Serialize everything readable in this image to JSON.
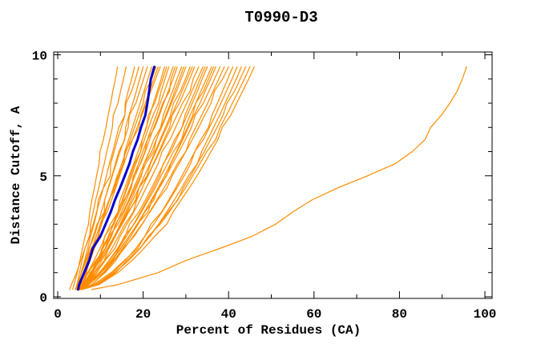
{
  "chart_data": {
    "type": "line",
    "title": "T0990-D3",
    "xlabel": "Percent of Residues (CA)",
    "ylabel": "Distance Cutoff, A",
    "xlim": [
      0,
      100
    ],
    "ylim": [
      0,
      10
    ],
    "grid": false,
    "legend": "none",
    "frame": "full-box-inward-ticks",
    "x_major_ticks": [
      0,
      20,
      40,
      60,
      80,
      100
    ],
    "x_minor_ticks": [
      10,
      30,
      50,
      70,
      90
    ],
    "x_tick_labels": [
      "0",
      "20",
      "40",
      "60",
      "80",
      "100"
    ],
    "y_major_ticks": [
      0,
      5,
      10
    ],
    "y_minor_ticks": [
      1,
      2,
      3,
      4,
      6,
      7,
      8,
      9
    ],
    "y_tick_labels": [
      "0",
      "5",
      "10"
    ],
    "colors": {
      "model": "#FF8C00",
      "highlight": "#0000CC",
      "axis": "#000000",
      "background": "#FFFFFF"
    },
    "cutoffs": [
      0.3,
      0.5,
      1.0,
      1.5,
      2.0,
      2.5,
      3.0,
      3.5,
      4.0,
      4.5,
      5.0,
      5.5,
      6.0,
      6.5,
      7.0,
      7.5,
      8.0,
      8.5,
      9.0,
      9.5
    ],
    "series": [
      {
        "name": "model-01",
        "color": "model",
        "x": [
          3.5,
          3.8,
          4.6,
          5.2,
          5.8,
          6.4,
          7.2,
          7.5,
          8.0,
          8.6,
          9.1,
          9.7,
          9.9,
          10.7,
          11.3,
          11.8,
          12.4,
          12.9,
          13.5,
          14.0
        ]
      },
      {
        "name": "model-02",
        "color": "model",
        "x": [
          4.2,
          4.5,
          5.1,
          5.7,
          6.4,
          7.5,
          7.7,
          8.3,
          8.9,
          9.6,
          10.2,
          10.9,
          11.5,
          12.2,
          12.8,
          13.0,
          14.1,
          14.7,
          15.4,
          16.0
        ]
      },
      {
        "name": "model-03",
        "color": "model",
        "x": [
          4.5,
          4.8,
          5.5,
          6.3,
          7.0,
          7.7,
          8.5,
          9.2,
          9.5,
          10.7,
          11.4,
          12.1,
          12.9,
          13.6,
          14.3,
          15.7,
          15.8,
          16.5,
          17.3,
          18.0
        ]
      },
      {
        "name": "model-04",
        "color": "model",
        "x": [
          2.8,
          3.2,
          4.4,
          5.4,
          6.4,
          7.4,
          8.3,
          9.1,
          9.9,
          10.7,
          12.3,
          12.4,
          13.2,
          14.0,
          14.9,
          15.7,
          16.0,
          17.3,
          18.2,
          19.0
        ]
      },
      {
        "name": "model-05",
        "color": "model",
        "x": [
          5.0,
          5.3,
          6.1,
          7.0,
          7.3,
          8.6,
          9.4,
          10.2,
          11.0,
          11.8,
          12.7,
          13.5,
          14.3,
          15.7,
          15.9,
          16.7,
          17.6,
          18.4,
          19.2,
          20.0
        ]
      },
      {
        "name": "model-06",
        "color": "model",
        "x": [
          4.3,
          4.7,
          5.6,
          6.5,
          7.4,
          8.3,
          9.2,
          10.9,
          11.0,
          11.9,
          12.8,
          13.7,
          14.6,
          15.6,
          16.5,
          16.8,
          18.3,
          19.2,
          20.1,
          21.0
        ]
      },
      {
        "name": "model-07",
        "color": "model",
        "x": [
          5.5,
          5.9,
          6.8,
          7.3,
          8.5,
          9.4,
          10.3,
          11.2,
          12.1,
          13.0,
          13.9,
          15.5,
          15.7,
          16.6,
          17.5,
          18.4,
          19.3,
          20.2,
          21.1,
          22.0
        ]
      },
      {
        "name": "model-08",
        "color": "model",
        "x": [
          4.6,
          5.0,
          6.0,
          7.0,
          8.0,
          9.0,
          10.0,
          11.0,
          12.0,
          13.5,
          14.0,
          15.0,
          16.0,
          17.0,
          18.0,
          19.0,
          20.0,
          20.5,
          22.0,
          23.0
        ]
      },
      {
        "name": "model-09",
        "color": "model",
        "x": [
          5.2,
          5.6,
          6.6,
          7.6,
          8.6,
          9.6,
          10.0,
          11.6,
          12.6,
          13.6,
          14.5,
          15.5,
          16.5,
          17.5,
          19.0,
          19.5,
          20.5,
          21.5,
          22.5,
          23.5
        ]
      },
      {
        "name": "model-10",
        "color": "model",
        "x": [
          4.1,
          4.5,
          5.6,
          6.7,
          7.8,
          9.5,
          9.9,
          11.0,
          12.1,
          13.2,
          14.3,
          15.3,
          15.7,
          17.5,
          18.6,
          19.7,
          20.8,
          21.8,
          22.9,
          24.0
        ]
      },
      {
        "name": "model-11",
        "color": "model",
        "x": [
          5.8,
          6.7,
          8.3,
          9.6,
          10.3,
          11.9,
          13.0,
          14.1,
          15.1,
          16.1,
          17.0,
          18.0,
          19.4,
          19.8,
          20.7,
          21.6,
          22.4,
          23.3,
          24.2,
          25.0
        ]
      },
      {
        "name": "model-12",
        "color": "model",
        "x": [
          4.4,
          5.4,
          7.1,
          8.5,
          9.9,
          11.1,
          12.3,
          14.1,
          14.6,
          15.7,
          16.7,
          17.8,
          18.8,
          19.8,
          20.8,
          21.2,
          22.7,
          23.6,
          24.6,
          25.5
        ]
      },
      {
        "name": "model-13",
        "color": "model",
        "x": [
          5.1,
          6.1,
          7.8,
          9.2,
          10.5,
          11.0,
          12.9,
          14.1,
          15.2,
          16.3,
          17.3,
          18.3,
          19.4,
          20.3,
          21.3,
          22.3,
          23.6,
          24.2,
          25.1,
          26.0
        ]
      },
      {
        "name": "model-14",
        "color": "model",
        "x": [
          4.8,
          5.8,
          7.1,
          9.2,
          10.6,
          11.9,
          13.1,
          14.4,
          15.5,
          17.2,
          17.8,
          18.9,
          19.9,
          21.0,
          22.0,
          23.1,
          24.0,
          25.0,
          26.0,
          27.0
        ]
      },
      {
        "name": "model-15",
        "color": "model",
        "x": [
          5.4,
          6.4,
          8.2,
          9.7,
          11.1,
          12.4,
          13.7,
          14.9,
          16.1,
          17.2,
          17.7,
          19.4,
          20.5,
          21.5,
          22.5,
          23.6,
          24.6,
          26.2,
          26.5,
          27.5
        ]
      },
      {
        "name": "model-16",
        "color": "model",
        "x": [
          4.2,
          5.3,
          7.2,
          8.9,
          11.2,
          11.8,
          13.1,
          14.4,
          15.7,
          16.9,
          18.1,
          19.3,
          20.4,
          21.0,
          22.7,
          23.8,
          24.8,
          25.9,
          27.0,
          28.0
        ]
      },
      {
        "name": "model-17",
        "color": "model",
        "x": [
          5.0,
          6.1,
          8.1,
          9.7,
          11.2,
          12.6,
          13.5,
          15.3,
          16.6,
          17.8,
          19.0,
          20.2,
          21.4,
          22.5,
          24.1,
          24.7,
          25.8,
          26.9,
          27.9,
          29.0
        ]
      },
      {
        "name": "model-18",
        "color": "model",
        "x": [
          5.7,
          6.8,
          8.7,
          10.9,
          11.9,
          13.3,
          14.6,
          15.9,
          17.2,
          18.4,
          19.6,
          20.2,
          22.0,
          23.1,
          24.2,
          25.3,
          26.4,
          27.4,
          28.5,
          29.5
        ]
      },
      {
        "name": "model-19",
        "color": "model",
        "x": [
          4.5,
          5.7,
          7.8,
          9.5,
          11.1,
          12.0,
          14.1,
          15.5,
          16.8,
          18.1,
          19.4,
          20.6,
          22.5,
          23.1,
          24.3,
          25.5,
          26.6,
          27.8,
          28.9,
          30.0
        ]
      },
      {
        "name": "model-20",
        "color": "model",
        "x": [
          5.3,
          6.5,
          8.6,
          10.3,
          12.0,
          13.5,
          14.9,
          16.4,
          18.4,
          19.0,
          20.3,
          21.6,
          22.8,
          24.0,
          25.2,
          26.4,
          27.1,
          28.7,
          29.9,
          31.0
        ]
      },
      {
        "name": "model-21",
        "color": "model",
        "x": [
          4.7,
          6.0,
          7.6,
          10.0,
          11.6,
          13.2,
          14.8,
          16.2,
          17.6,
          19.0,
          20.9,
          21.7,
          23.0,
          24.2,
          25.5,
          26.7,
          27.9,
          29.1,
          30.3,
          31.5
        ]
      },
      {
        "name": "model-22",
        "color": "model",
        "x": [
          5.9,
          7.1,
          9.2,
          11.0,
          12.7,
          14.2,
          15.7,
          17.7,
          18.5,
          19.8,
          21.1,
          22.4,
          23.7,
          24.9,
          26.2,
          26.8,
          28.5,
          29.7,
          30.9,
          32.0
        ]
      },
      {
        "name": "model-23",
        "color": "model",
        "x": [
          4.3,
          5.6,
          8.0,
          9.9,
          11.7,
          13.4,
          15.1,
          16.6,
          18.2,
          19.0,
          21.1,
          22.5,
          23.9,
          25.2,
          26.6,
          27.9,
          29.2,
          31.0,
          31.7,
          33.0
        ]
      },
      {
        "name": "model-24",
        "color": "model",
        "x": [
          5.5,
          6.8,
          9.1,
          11.1,
          13.4,
          14.6,
          16.2,
          17.8,
          19.3,
          20.7,
          22.1,
          23.5,
          24.4,
          26.3,
          27.6,
          28.9,
          30.2,
          31.4,
          32.7,
          34.0
        ]
      },
      {
        "name": "model-25",
        "color": "model",
        "x": [
          4.9,
          6.9,
          9.8,
          12.0,
          14.0,
          15.8,
          16.8,
          19.0,
          20.5,
          22.0,
          23.4,
          24.8,
          26.1,
          27.4,
          29.1,
          29.8,
          31.0,
          32.2,
          33.3,
          34.5
        ]
      },
      {
        "name": "model-26",
        "color": "model",
        "x": [
          5.2,
          7.2,
          10.1,
          13.0,
          14.3,
          16.1,
          17.8,
          19.4,
          20.9,
          22.4,
          23.8,
          24.7,
          26.5,
          27.8,
          29.1,
          30.3,
          31.5,
          32.7,
          33.8,
          35.0
        ]
      },
      {
        "name": "model-27",
        "color": "model",
        "x": [
          4.6,
          6.7,
          9.8,
          12.1,
          14.2,
          15.6,
          17.9,
          19.6,
          21.2,
          22.8,
          24.2,
          25.7,
          27.1,
          29.0,
          29.8,
          31.0,
          32.3,
          33.5,
          34.8,
          36.0
        ]
      },
      {
        "name": "model-28",
        "color": "model",
        "x": [
          5.8,
          7.9,
          10.9,
          13.2,
          15.2,
          17.1,
          18.8,
          20.4,
          22.5,
          23.5,
          25.0,
          26.4,
          27.8,
          29.1,
          30.4,
          31.6,
          32.3,
          34.1,
          35.3,
          36.5
        ]
      },
      {
        "name": "model-29",
        "color": "model",
        "x": [
          5.0,
          7.2,
          9.7,
          12.7,
          14.8,
          16.7,
          18.6,
          20.3,
          21.9,
          23.5,
          25.5,
          26.5,
          27.9,
          29.3,
          30.6,
          31.9,
          33.3,
          34.5,
          35.8,
          37.0
        ]
      },
      {
        "name": "model-30",
        "color": "model",
        "x": [
          4.4,
          6.7,
          9.9,
          12.5,
          14.7,
          16.7,
          18.6,
          21.1,
          22.1,
          23.8,
          25.4,
          26.9,
          28.4,
          29.9,
          31.3,
          32.2,
          34.1,
          35.4,
          36.7,
          38.0
        ]
      },
      {
        "name": "model-31",
        "color": "model",
        "x": [
          5.6,
          7.9,
          11.1,
          13.6,
          15.4,
          17.9,
          19.8,
          21.5,
          23.2,
          24.9,
          26.5,
          28.0,
          30.0,
          30.9,
          32.3,
          33.7,
          35.1,
          36.4,
          37.7,
          39.0
        ]
      },
      {
        "name": "model-32",
        "color": "model",
        "x": [
          4.8,
          7.2,
          10.6,
          13.2,
          15.6,
          17.7,
          19.7,
          21.6,
          23.4,
          25.6,
          26.8,
          28.4,
          30.0,
          31.5,
          33.0,
          34.4,
          35.9,
          36.7,
          38.6,
          40.0
        ]
      },
      {
        "name": "model-33",
        "color": "model",
        "x": [
          5.3,
          8.9,
          12.9,
          15.8,
          18.3,
          20.4,
          21.8,
          24.3,
          26.0,
          27.6,
          29.1,
          30.6,
          32.1,
          33.5,
          35.3,
          36.1,
          37.4,
          38.6,
          39.8,
          41.0
        ]
      },
      {
        "name": "model-34",
        "color": "model",
        "x": [
          4.5,
          8.3,
          12.5,
          15.6,
          18.7,
          20.4,
          22.5,
          24.4,
          26.2,
          27.9,
          29.6,
          31.1,
          32.1,
          34.1,
          35.5,
          36.9,
          38.2,
          39.5,
          40.8,
          42.0
        ]
      },
      {
        "name": "model-35",
        "color": "model",
        "x": [
          5.7,
          9.4,
          13.6,
          16.2,
          19.2,
          21.5,
          23.6,
          25.5,
          27.3,
          29.0,
          30.6,
          32.7,
          33.7,
          35.1,
          36.5,
          37.9,
          39.2,
          40.5,
          41.8,
          43.0
        ]
      },
      {
        "name": "model-36",
        "color": "model",
        "x": [
          5.1,
          9.0,
          13.4,
          16.6,
          19.2,
          21.6,
          23.7,
          25.8,
          28.1,
          29.4,
          31.1,
          32.7,
          34.3,
          35.8,
          37.3,
          38.7,
          39.6,
          41.4,
          42.7,
          44.0
        ]
      },
      {
        "name": "model-37",
        "color": "model",
        "x": [
          4.7,
          8.7,
          13.3,
          16.6,
          19.3,
          21.2,
          24.0,
          26.1,
          28.0,
          29.9,
          31.6,
          33.3,
          34.9,
          37.0,
          38.0,
          39.5,
          40.9,
          42.3,
          43.7,
          45.0
        ]
      },
      {
        "name": "model-38",
        "color": "model",
        "x": [
          5.5,
          9.6,
          14.1,
          17.4,
          20.2,
          22.7,
          25.5,
          27.0,
          28.9,
          30.8,
          32.6,
          34.3,
          35.9,
          37.5,
          38.5,
          40.5,
          41.9,
          43.3,
          44.7,
          46.0
        ]
      },
      {
        "name": "outlier-model",
        "color": "model",
        "x": [
          8.0,
          14.0,
          23.5,
          30.0,
          38.0,
          45.5,
          51.0,
          55.0,
          59.5,
          65.5,
          72.5,
          79.0,
          83.0,
          86.0,
          87.3,
          89.8,
          91.8,
          93.5,
          94.7,
          95.7
        ]
      },
      {
        "name": "highlighted-model",
        "color": "highlight",
        "x": [
          4.8,
          5.0,
          6.2,
          7.4,
          8.2,
          10.0,
          11.2,
          12.4,
          13.4,
          14.6,
          15.7,
          16.8,
          17.6,
          18.7,
          19.5,
          20.5,
          21.0,
          21.4,
          21.8,
          22.6
        ]
      }
    ]
  }
}
